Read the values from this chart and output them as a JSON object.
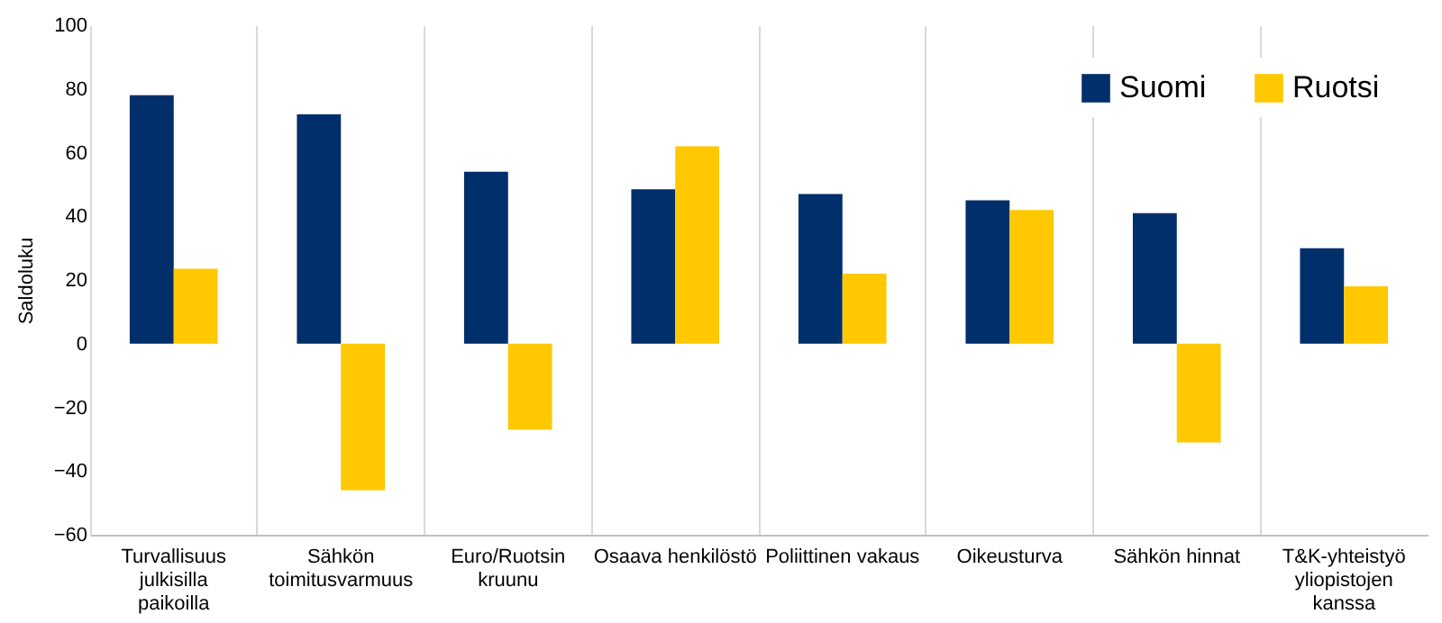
{
  "chart_data": {
    "type": "bar",
    "ylabel": "Saldoluku",
    "categories": [
      "Turvallisuus julkisilla paikoilla",
      "Sähkön toimitusvarmuus",
      "Euro/Ruotsin kruunu",
      "Osaava henkilöstö",
      "Poliittinen vakaus",
      "Oikeusturva",
      "Sähkön hinnat",
      "T&K-yhteistyö yliopistojen kanssa"
    ],
    "series": [
      {
        "name": "Suomi",
        "color": "#002f6c",
        "values": [
          78,
          72,
          54,
          48.5,
          47,
          45,
          41,
          30
        ]
      },
      {
        "name": "Ruotsi",
        "color": "#ffc800",
        "values": [
          23.5,
          -46,
          -27,
          62,
          22,
          42,
          -31,
          18
        ]
      }
    ],
    "ylim": [
      -60,
      100
    ],
    "yticks": [
      -60,
      -40,
      -20,
      0,
      20,
      40,
      60,
      80,
      100
    ],
    "grid": "x",
    "legend": "top right"
  }
}
